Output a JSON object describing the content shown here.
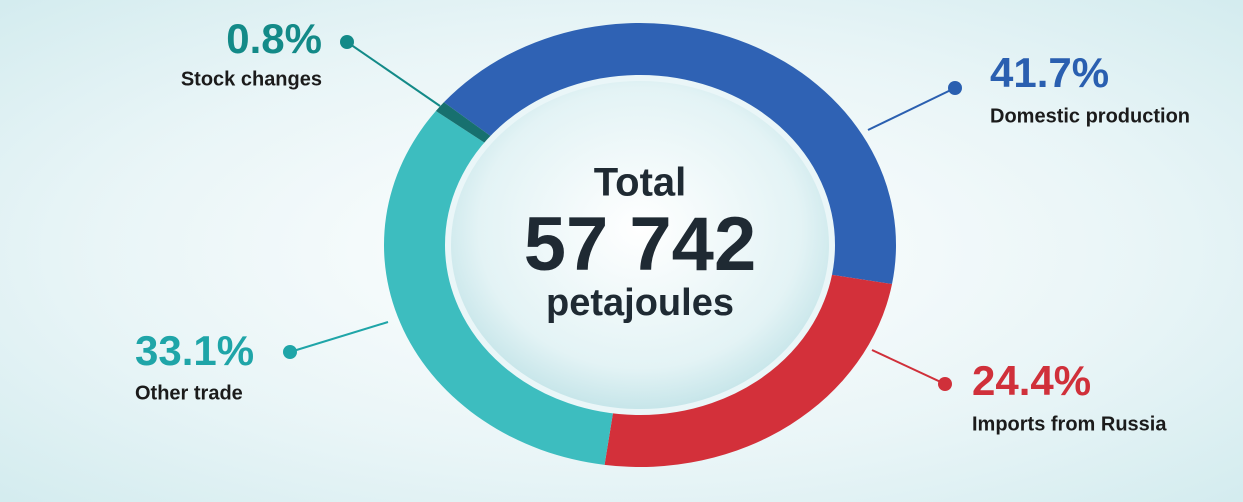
{
  "chart_data": {
    "type": "pie",
    "center_text": [
      "Total",
      "57 742",
      "petajoules"
    ],
    "categories": [
      "Domestic production",
      "Imports from Russia",
      "Other trade",
      "Stock changes"
    ],
    "values": [
      41.7,
      24.4,
      33.1,
      0.8
    ],
    "value_labels": [
      "41.7%",
      "24.4%",
      "33.1%",
      "0.8%"
    ],
    "colors": [
      "#2f62b4",
      "#d3303a",
      "#3dbdbf",
      "#17706f"
    ],
    "label_colors": [
      "#2a5fb0",
      "#d0303a",
      "#1fa5a8",
      "#138a88"
    ]
  }
}
